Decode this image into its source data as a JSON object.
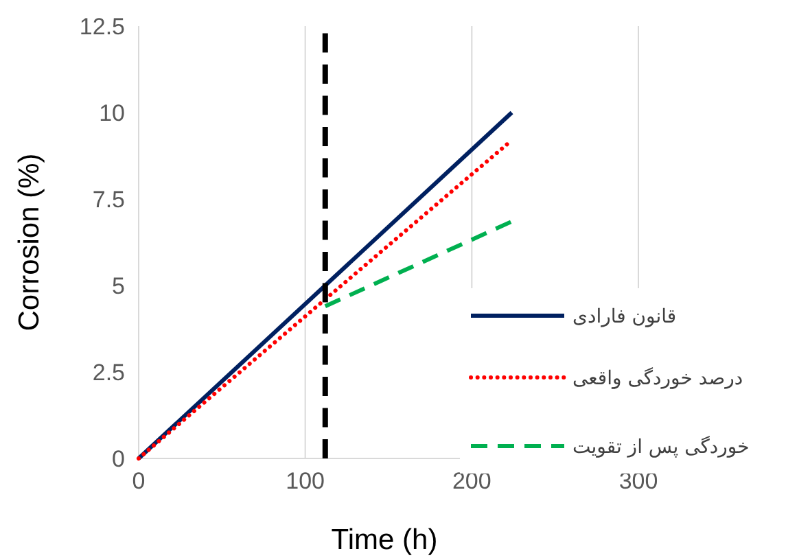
{
  "chart_data": {
    "type": "line",
    "xlabel": "Time (h)",
    "ylabel": "Corrosion (%)",
    "xlim": [
      0,
      300
    ],
    "xticks": [
      0,
      100,
      200,
      300
    ],
    "ylim": [
      0,
      12.5
    ],
    "yticks": [
      0,
      2.5,
      5,
      7.5,
      10,
      12.5
    ],
    "grid": "x",
    "legend": "right",
    "series": [
      {
        "name": "قانون فارادی",
        "color": "#002060",
        "line_style": "solid",
        "x": [
          0,
          224
        ],
        "values": [
          0,
          10
        ]
      },
      {
        "name": "درصد خوردگی واقعی",
        "color": "#ff0000",
        "line_style": "dotted",
        "x": [
          0,
          224
        ],
        "values": [
          0,
          9.2
        ]
      },
      {
        "name": "خوردگی پس از تقویت",
        "color": "#00b050",
        "line_style": "dashed",
        "x": [
          112,
          224
        ],
        "values": [
          4.4,
          6.85
        ]
      }
    ],
    "ref_lines": [
      {
        "axis": "x",
        "value": 112,
        "color": "#000000",
        "line_style": "dashed"
      }
    ]
  }
}
